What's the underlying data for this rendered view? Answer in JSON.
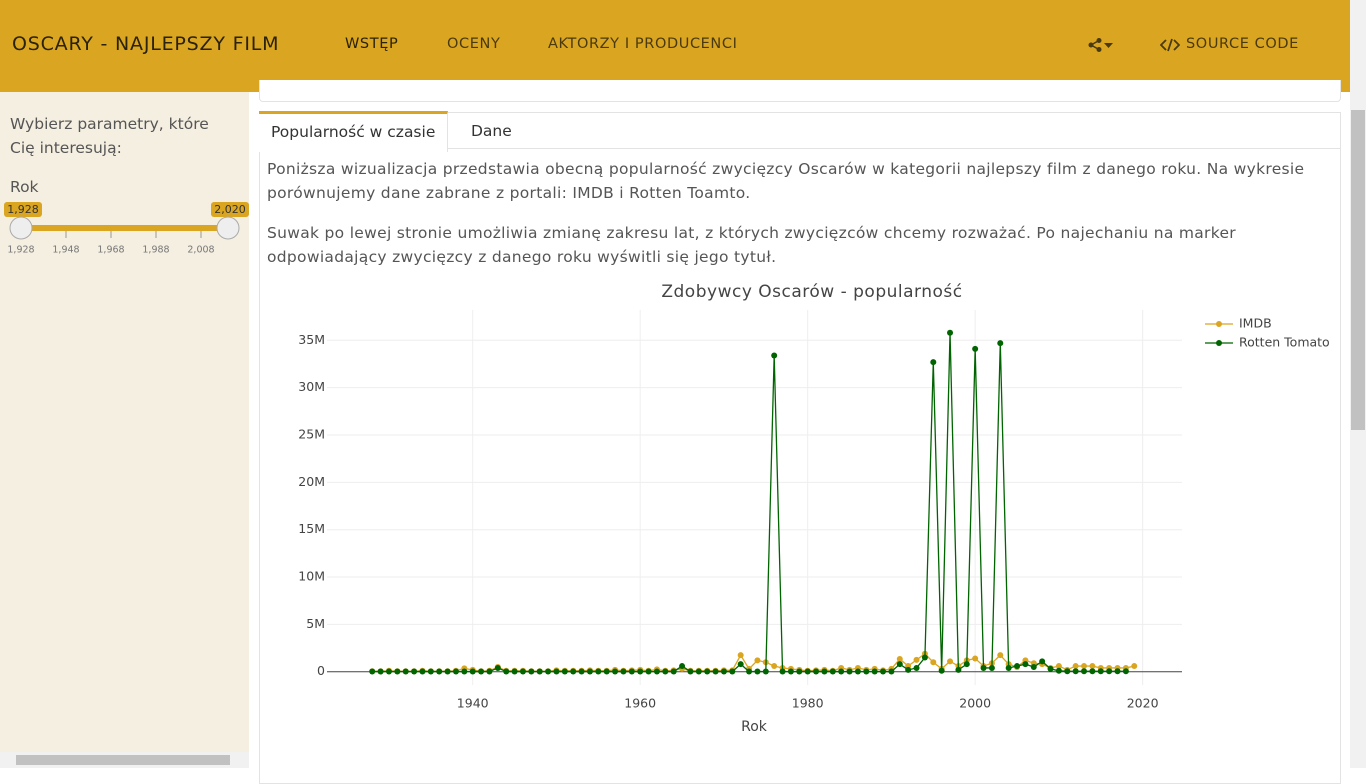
{
  "navbar": {
    "brand": "OSCARY - NAJLEPSZY FILM",
    "items": [
      "WSTĘP",
      "OCENY",
      "AKTORZY I PRODUCENCI"
    ],
    "source": "SOURCE CODE"
  },
  "sidebar": {
    "intro": "Wybierz parametry, które Cię interesują:",
    "slider": {
      "label": "Rok",
      "from": {
        "value": 1928,
        "label": "1,928"
      },
      "to": {
        "value": 2020,
        "label": "2,020"
      },
      "ticks": [
        {
          "value": 1928,
          "label": "1,928"
        },
        {
          "value": 1948,
          "label": "1,948"
        },
        {
          "value": 1968,
          "label": "1,968"
        },
        {
          "value": 1988,
          "label": "1,988"
        },
        {
          "value": 2008,
          "label": "2,008"
        }
      ]
    }
  },
  "tabs": [
    "Popularność w czasie",
    "Dane"
  ],
  "paragraphs": [
    "Poniższa wizualizacja przedstawia obecną popularność zwycięzcy Oscarów w kategorii najlepszy film z danego roku. Na wykresie porównujemy dane zabrane z portali: IMDB i Rotten Toamto.",
    "Suwak po lewej stronie umożliwia zmianę zakresu lat, z których zwycięzców chcemy rozważać. Po najechaniu na marker odpowiadający zwycięzcy z danego roku wyświtli się jego tytuł."
  ],
  "chart_data": {
    "type": "line",
    "title": "Zdobywcy Oscarów - popularność",
    "x_label": "Rok",
    "x": [
      1928,
      1929,
      1930,
      1931,
      1932,
      1933,
      1934,
      1935,
      1936,
      1937,
      1938,
      1939,
      1940,
      1941,
      1942,
      1943,
      1944,
      1945,
      1946,
      1947,
      1948,
      1949,
      1950,
      1951,
      1952,
      1953,
      1954,
      1955,
      1956,
      1957,
      1958,
      1959,
      1960,
      1961,
      1962,
      1963,
      1964,
      1965,
      1966,
      1967,
      1968,
      1969,
      1970,
      1971,
      1972,
      1973,
      1974,
      1975,
      1976,
      1977,
      1978,
      1979,
      1980,
      1981,
      1982,
      1983,
      1984,
      1985,
      1986,
      1987,
      1988,
      1989,
      1990,
      1991,
      1992,
      1993,
      1994,
      1995,
      1996,
      1997,
      1998,
      1999,
      2000,
      2001,
      2002,
      2003,
      2004,
      2005,
      2006,
      2007,
      2008,
      2009,
      2010,
      2011,
      2012,
      2013,
      2014,
      2015,
      2016,
      2017,
      2018,
      2019
    ],
    "series": [
      {
        "name": "IMDB",
        "color": "#daa520",
        "values": [
          50000,
          50000,
          100000,
          50000,
          50000,
          50000,
          100000,
          50000,
          50000,
          50000,
          100000,
          350000,
          200000,
          50000,
          100000,
          500000,
          100000,
          100000,
          100000,
          50000,
          50000,
          50000,
          150000,
          100000,
          100000,
          100000,
          150000,
          100000,
          100000,
          200000,
          100000,
          150000,
          200000,
          100000,
          250000,
          100000,
          150000,
          300000,
          100000,
          100000,
          100000,
          100000,
          150000,
          150000,
          1750000,
          300000,
          1200000,
          1000000,
          600000,
          400000,
          300000,
          200000,
          100000,
          150000,
          200000,
          100000,
          400000,
          200000,
          400000,
          200000,
          300000,
          150000,
          300000,
          1350000,
          600000,
          1250000,
          1900000,
          1000000,
          300000,
          1100000,
          600000,
          1200000,
          1400000,
          600000,
          900000,
          1750000,
          800000,
          500000,
          1200000,
          900000,
          800000,
          400000,
          600000,
          200000,
          600000,
          600000,
          600000,
          400000,
          400000,
          400000,
          400000,
          600000
        ]
      },
      {
        "name": "Rotten Tomato",
        "color": "#006400",
        "values": [
          20000,
          20000,
          20000,
          20000,
          20000,
          20000,
          20000,
          20000,
          20000,
          20000,
          20000,
          20000,
          20000,
          20000,
          20000,
          400000,
          20000,
          20000,
          20000,
          20000,
          20000,
          20000,
          20000,
          20000,
          20000,
          20000,
          20000,
          20000,
          20000,
          20000,
          20000,
          20000,
          20000,
          20000,
          20000,
          20000,
          20000,
          600000,
          20000,
          20000,
          20000,
          20000,
          20000,
          20000,
          800000,
          20000,
          20000,
          20000,
          33400000,
          20000,
          20000,
          20000,
          20000,
          20000,
          20000,
          20000,
          20000,
          20000,
          20000,
          20000,
          20000,
          20000,
          20000,
          800000,
          200000,
          400000,
          1500000,
          32700000,
          100000,
          35800000,
          200000,
          800000,
          34100000,
          400000,
          400000,
          34700000,
          400000,
          600000,
          800000,
          500000,
          1100000,
          300000,
          100000,
          50000,
          50000,
          50000,
          50000,
          50000,
          50000,
          50000,
          50000,
          null
        ]
      }
    ],
    "xlim": [
      1922.6,
      2024.7
    ],
    "xticks": [
      1940,
      1960,
      1980,
      2000,
      2020
    ],
    "ylim": [
      -1400000,
      38200000
    ],
    "yticks": [
      0,
      {
        "value": 5000000,
        "label": "5M"
      },
      {
        "value": 10000000,
        "label": "10M"
      },
      {
        "value": 15000000,
        "label": "15M"
      },
      {
        "value": 20000000,
        "label": "20M"
      },
      {
        "value": 25000000,
        "label": "25M"
      },
      {
        "value": 30000000,
        "label": "30M"
      },
      {
        "value": 35000000,
        "label": "35M"
      }
    ],
    "grid": true
  }
}
